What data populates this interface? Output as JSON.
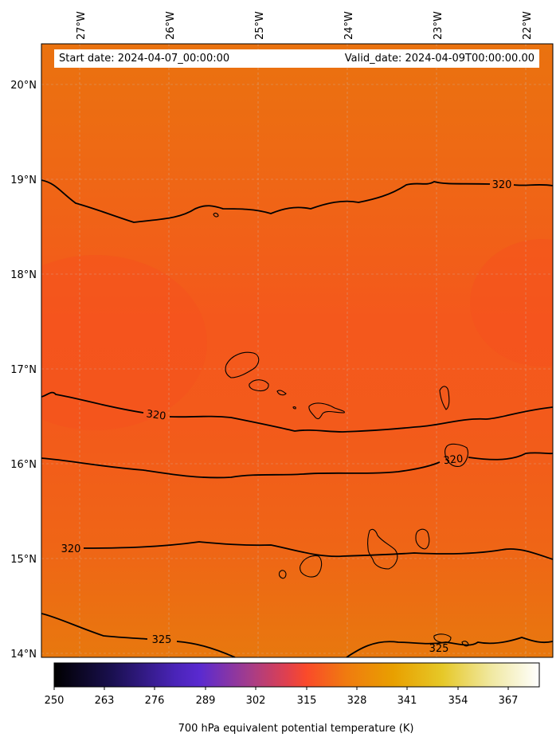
{
  "header": {
    "start_date": "Start date: 2024-04-07_00:00:00",
    "valid_date": "Valid_date: 2024-04-09T00:00:00.00"
  },
  "map": {
    "lon_ticks": [
      "27°W",
      "26°W",
      "25°W",
      "24°W",
      "23°W",
      "22°W"
    ],
    "lat_ticks": [
      "20°N",
      "19°N",
      "18°N",
      "17°N",
      "16°N",
      "15°N",
      "14°N"
    ],
    "field_colors": {
      "low": "#e8760e",
      "mid": "#f0641a",
      "high": "#f7521f"
    },
    "contour_labels": [
      "320",
      "320",
      "320",
      "320",
      "325",
      "325"
    ]
  },
  "colorbar": {
    "title": "700 hPa equivalent potential temperature (K)",
    "ticks": [
      "250",
      "263",
      "276",
      "289",
      "302",
      "315",
      "328",
      "341",
      "354",
      "367"
    ],
    "range": [
      250,
      375
    ]
  }
}
